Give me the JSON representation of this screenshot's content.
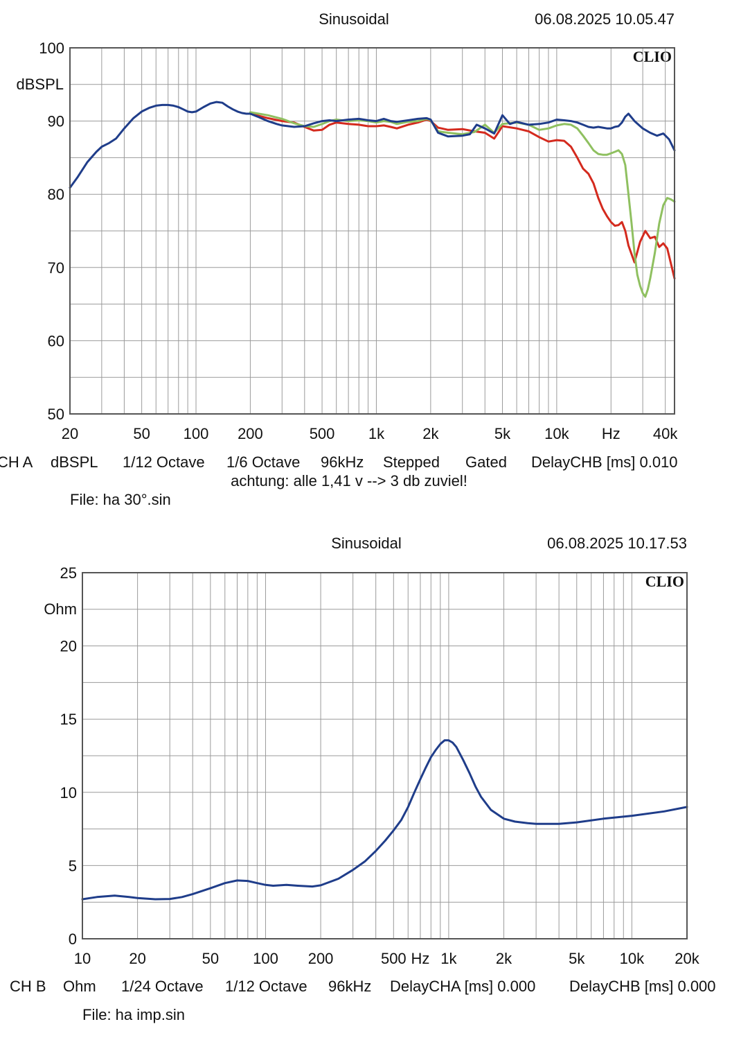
{
  "chart_data": [
    {
      "type": "line",
      "title": "Sinusoidal",
      "timestamp": "06.08.2025 10.05.47",
      "brand": "CLIO",
      "ylabel": "dBSPL",
      "xscale": "log",
      "xlim": [
        20,
        45000
      ],
      "ylim": [
        50,
        100
      ],
      "yticks": [
        {
          "v": 100,
          "t": "100"
        },
        {
          "v": 90,
          "t": "90"
        },
        {
          "v": 80,
          "t": "80"
        },
        {
          "v": 70,
          "t": "70"
        },
        {
          "v": 60,
          "t": "60"
        },
        {
          "v": 50,
          "t": "50"
        }
      ],
      "xticks": [
        {
          "v": 20,
          "t": "20"
        },
        {
          "v": 50,
          "t": "50"
        },
        {
          "v": 100,
          "t": "100"
        },
        {
          "v": 200,
          "t": "200"
        },
        {
          "v": 500,
          "t": "500"
        },
        {
          "v": 1000,
          "t": "1k"
        },
        {
          "v": 2000,
          "t": "2k"
        },
        {
          "v": 5000,
          "t": "5k"
        },
        {
          "v": 10000,
          "t": "10k"
        },
        {
          "v": 20000,
          "t": "Hz"
        },
        {
          "v": 40000,
          "t": "40k"
        }
      ],
      "settings": [
        "CH A",
        "dBSPL",
        "1/12 Octave",
        "1/6 Octave",
        "96kHz",
        "Stepped",
        "Gated",
        "DelayCHB [ms] 0.010"
      ],
      "note": "achtung: alle 1,41 v --> 3 db zuviel!",
      "file": "File: ha 30°.sin",
      "series": [
        {
          "name": "red",
          "color": "#d42a1e",
          "x": [
            200,
            250,
            300,
            350,
            400,
            450,
            500,
            550,
            600,
            700,
            800,
            900,
            1000,
            1100,
            1200,
            1300,
            1500,
            1700,
            1900,
            2000,
            2200,
            2500,
            3000,
            3500,
            4000,
            4500,
            5000,
            6000,
            7000,
            8000,
            9000,
            10000,
            11000,
            12000,
            13000,
            14000,
            15000,
            16000,
            17000,
            18000,
            19000,
            20000,
            21000,
            22000,
            23000,
            24000,
            25000,
            27000,
            29000,
            31000,
            33000,
            35000,
            37000,
            39000,
            41000,
            43000,
            45000
          ],
          "y": [
            91.0,
            90.4,
            90.0,
            89.8,
            89.2,
            88.7,
            88.8,
            89.5,
            89.8,
            89.6,
            89.5,
            89.3,
            89.3,
            89.4,
            89.2,
            89.0,
            89.5,
            89.8,
            90.2,
            90.0,
            89.1,
            88.8,
            88.9,
            88.6,
            88.4,
            87.6,
            89.3,
            89.0,
            88.6,
            87.8,
            87.2,
            87.4,
            87.3,
            86.5,
            85.0,
            83.5,
            82.8,
            81.5,
            79.5,
            78.0,
            77.0,
            76.2,
            75.7,
            75.8,
            76.2,
            75.0,
            73.0,
            70.7,
            73.5,
            75.0,
            74.0,
            74.2,
            72.8,
            73.3,
            72.6,
            70.5,
            68.5
          ]
        },
        {
          "name": "green",
          "color": "#8fc060",
          "x": [
            200,
            250,
            300,
            350,
            400,
            450,
            500,
            550,
            600,
            700,
            800,
            900,
            1000,
            1100,
            1200,
            1300,
            1500,
            1700,
            1900,
            2000,
            2200,
            2500,
            3000,
            3500,
            4000,
            4500,
            5000,
            6000,
            7000,
            8000,
            9000,
            10000,
            11000,
            12000,
            13000,
            14000,
            15000,
            16000,
            17000,
            18000,
            19000,
            20000,
            21000,
            22000,
            23000,
            24000,
            25000,
            26000,
            27000,
            28000,
            29000,
            30000,
            31000,
            32000,
            33000,
            35000,
            37000,
            39000,
            41000,
            43000,
            45000
          ],
          "y": [
            91.2,
            90.8,
            90.3,
            89.7,
            89.3,
            89.2,
            89.6,
            90.0,
            90.2,
            90.0,
            90.1,
            90.0,
            89.8,
            90.0,
            89.9,
            89.6,
            89.9,
            90.0,
            90.3,
            90.1,
            88.6,
            88.4,
            88.2,
            88.5,
            89.5,
            88.4,
            89.6,
            89.8,
            89.5,
            88.8,
            89.0,
            89.4,
            89.6,
            89.5,
            89.0,
            88.0,
            87.0,
            86.0,
            85.5,
            85.4,
            85.4,
            85.6,
            85.8,
            86.0,
            85.5,
            84.0,
            80.0,
            76.0,
            72.0,
            69.0,
            67.5,
            66.5,
            66.0,
            67.0,
            68.5,
            72.0,
            76.0,
            78.5,
            79.5,
            79.3,
            79.0
          ]
        },
        {
          "name": "blue",
          "color": "#1f3d8a",
          "x": [
            20,
            22,
            25,
            28,
            30,
            33,
            36,
            40,
            45,
            50,
            55,
            60,
            65,
            70,
            75,
            80,
            85,
            90,
            95,
            100,
            110,
            120,
            130,
            140,
            150,
            160,
            170,
            180,
            190,
            200,
            220,
            250,
            280,
            300,
            350,
            400,
            450,
            500,
            550,
            600,
            700,
            800,
            900,
            1000,
            1100,
            1200,
            1300,
            1500,
            1700,
            1900,
            2000,
            2200,
            2500,
            3000,
            3300,
            3600,
            4000,
            4500,
            5000,
            5500,
            6000,
            7000,
            8000,
            9000,
            10000,
            11000,
            12000,
            13000,
            14000,
            15000,
            16000,
            17000,
            18000,
            19000,
            20000,
            21000,
            22000,
            23000,
            24000,
            25000,
            27000,
            30000,
            33000,
            36000,
            39000,
            42000,
            45000
          ],
          "y": [
            80.9,
            82.3,
            84.4,
            85.8,
            86.5,
            87.0,
            87.6,
            89.0,
            90.4,
            91.3,
            91.8,
            92.1,
            92.2,
            92.2,
            92.1,
            91.9,
            91.6,
            91.3,
            91.2,
            91.3,
            91.9,
            92.4,
            92.6,
            92.5,
            92.0,
            91.6,
            91.3,
            91.1,
            91.0,
            91.0,
            90.6,
            90.0,
            89.6,
            89.4,
            89.2,
            89.3,
            89.7,
            90.0,
            90.1,
            90.0,
            90.2,
            90.3,
            90.1,
            90.0,
            90.3,
            90.0,
            89.9,
            90.1,
            90.3,
            90.4,
            90.2,
            88.4,
            87.9,
            88.0,
            88.2,
            89.5,
            89.0,
            88.3,
            90.8,
            89.6,
            89.9,
            89.5,
            89.6,
            89.8,
            90.2,
            90.1,
            90.0,
            89.8,
            89.5,
            89.2,
            89.1,
            89.2,
            89.1,
            89.0,
            89.0,
            89.2,
            89.3,
            89.8,
            90.6,
            91.0,
            90.0,
            89.0,
            88.4,
            88.0,
            88.3,
            87.5,
            86.0
          ]
        }
      ]
    },
    {
      "type": "line",
      "title": "Sinusoidal",
      "timestamp": "06.08.2025 10.17.53",
      "brand": "CLIO",
      "ylabel": "Ohm",
      "xscale": "log",
      "xlim": [
        10,
        20000
      ],
      "ylim": [
        0,
        25
      ],
      "yticks": [
        {
          "v": 25,
          "t": "25"
        },
        {
          "v": 20,
          "t": "20"
        },
        {
          "v": 15,
          "t": "15"
        },
        {
          "v": 10,
          "t": "10"
        },
        {
          "v": 5,
          "t": "5"
        },
        {
          "v": 0,
          "t": "0"
        }
      ],
      "xticks": [
        {
          "v": 10,
          "t": "10"
        },
        {
          "v": 20,
          "t": "20"
        },
        {
          "v": 50,
          "t": "50"
        },
        {
          "v": 100,
          "t": "100"
        },
        {
          "v": 200,
          "t": "200"
        },
        {
          "v": 500,
          "t": "500"
        },
        {
          "v": 700,
          "t": "Hz"
        },
        {
          "v": 1000,
          "t": "1k"
        },
        {
          "v": 2000,
          "t": "2k"
        },
        {
          "v": 5000,
          "t": "5k"
        },
        {
          "v": 10000,
          "t": "10k"
        },
        {
          "v": 20000,
          "t": "20k"
        }
      ],
      "settings": [
        "CH B",
        "Ohm",
        "1/24 Octave",
        "1/12 Octave",
        "96kHz",
        "DelayCHA [ms] 0.000",
        "DelayCHB [ms] 0.000"
      ],
      "file": "File: ha imp.sin",
      "series": [
        {
          "name": "impedance",
          "color": "#1f3d8a",
          "x": [
            10,
            12,
            15,
            18,
            20,
            25,
            30,
            35,
            40,
            50,
            60,
            70,
            80,
            90,
            100,
            110,
            130,
            150,
            180,
            200,
            250,
            300,
            350,
            400,
            450,
            500,
            550,
            600,
            650,
            700,
            750,
            800,
            850,
            900,
            950,
            1000,
            1050,
            1100,
            1200,
            1300,
            1400,
            1500,
            1700,
            2000,
            2300,
            2700,
            3000,
            3500,
            4000,
            5000,
            7000,
            10000,
            15000,
            20000
          ],
          "y": [
            2.7,
            2.85,
            2.95,
            2.85,
            2.78,
            2.7,
            2.72,
            2.85,
            3.05,
            3.45,
            3.8,
            3.98,
            3.95,
            3.8,
            3.68,
            3.62,
            3.68,
            3.62,
            3.57,
            3.65,
            4.1,
            4.7,
            5.3,
            6.0,
            6.7,
            7.4,
            8.1,
            9.0,
            10.0,
            10.9,
            11.7,
            12.4,
            12.9,
            13.3,
            13.55,
            13.55,
            13.4,
            13.1,
            12.2,
            11.3,
            10.4,
            9.7,
            8.8,
            8.2,
            8.0,
            7.9,
            7.85,
            7.85,
            7.85,
            7.95,
            8.2,
            8.4,
            8.7,
            9.0
          ]
        }
      ]
    }
  ]
}
